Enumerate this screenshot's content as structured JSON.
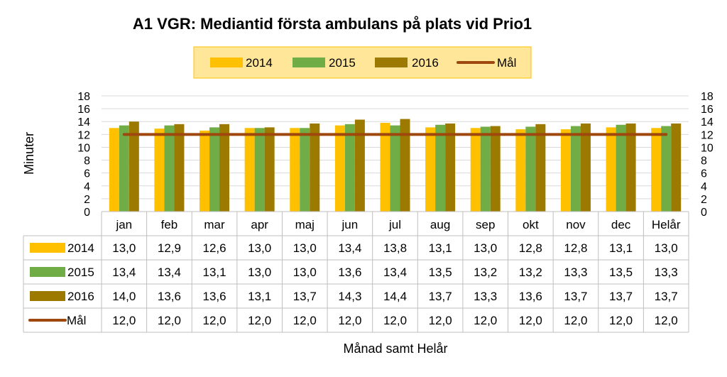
{
  "chart_data": {
    "type": "bar",
    "title": "A1 VGR: Mediantid första ambulans på plats vid Prio1",
    "xlabel": "Månad samt Helår",
    "ylabel": "Minuter",
    "ylim": [
      0,
      18
    ],
    "yticks": [
      0,
      2,
      4,
      6,
      8,
      10,
      12,
      14,
      16,
      18
    ],
    "secondary_yticks": [
      0,
      2,
      4,
      6,
      8,
      10,
      12,
      14,
      16,
      18
    ],
    "categories": [
      "jan",
      "feb",
      "mar",
      "apr",
      "maj",
      "jun",
      "jul",
      "aug",
      "sep",
      "okt",
      "nov",
      "dec",
      "Helår"
    ],
    "series": [
      {
        "name": "2014",
        "kind": "bar",
        "color": "#ffc000",
        "values": [
          13.0,
          12.9,
          12.6,
          13.0,
          13.0,
          13.4,
          13.8,
          13.1,
          13.0,
          12.8,
          12.8,
          13.1,
          13.0
        ],
        "labels": [
          "13,0",
          "12,9",
          "12,6",
          "13,0",
          "13,0",
          "13,4",
          "13,8",
          "13,1",
          "13,0",
          "12,8",
          "12,8",
          "13,1",
          "13,0"
        ]
      },
      {
        "name": "2015",
        "kind": "bar",
        "color": "#70ad47",
        "values": [
          13.4,
          13.4,
          13.1,
          13.0,
          13.0,
          13.6,
          13.4,
          13.5,
          13.2,
          13.2,
          13.3,
          13.5,
          13.3
        ],
        "labels": [
          "13,4",
          "13,4",
          "13,1",
          "13,0",
          "13,0",
          "13,6",
          "13,4",
          "13,5",
          "13,2",
          "13,2",
          "13,3",
          "13,5",
          "13,3"
        ]
      },
      {
        "name": "2016",
        "kind": "bar",
        "color": "#9c7a00",
        "values": [
          14.0,
          13.6,
          13.6,
          13.1,
          13.7,
          14.3,
          14.4,
          13.7,
          13.3,
          13.6,
          13.7,
          13.7,
          13.7
        ],
        "labels": [
          "14,0",
          "13,6",
          "13,6",
          "13,1",
          "13,7",
          "14,3",
          "14,4",
          "13,7",
          "13,3",
          "13,6",
          "13,7",
          "13,7",
          "13,7"
        ]
      },
      {
        "name": "Mål",
        "kind": "line",
        "color": "#9e480e",
        "values": [
          12.0,
          12.0,
          12.0,
          12.0,
          12.0,
          12.0,
          12.0,
          12.0,
          12.0,
          12.0,
          12.0,
          12.0,
          12.0
        ],
        "labels": [
          "12,0",
          "12,0",
          "12,0",
          "12,0",
          "12,0",
          "12,0",
          "12,0",
          "12,0",
          "12,0",
          "12,0",
          "12,0",
          "12,0",
          "12,0"
        ]
      }
    ],
    "legend_position": "top",
    "legend_background": "#ffe699",
    "legend_border": "#ffc000",
    "grid": true,
    "data_table": true
  }
}
